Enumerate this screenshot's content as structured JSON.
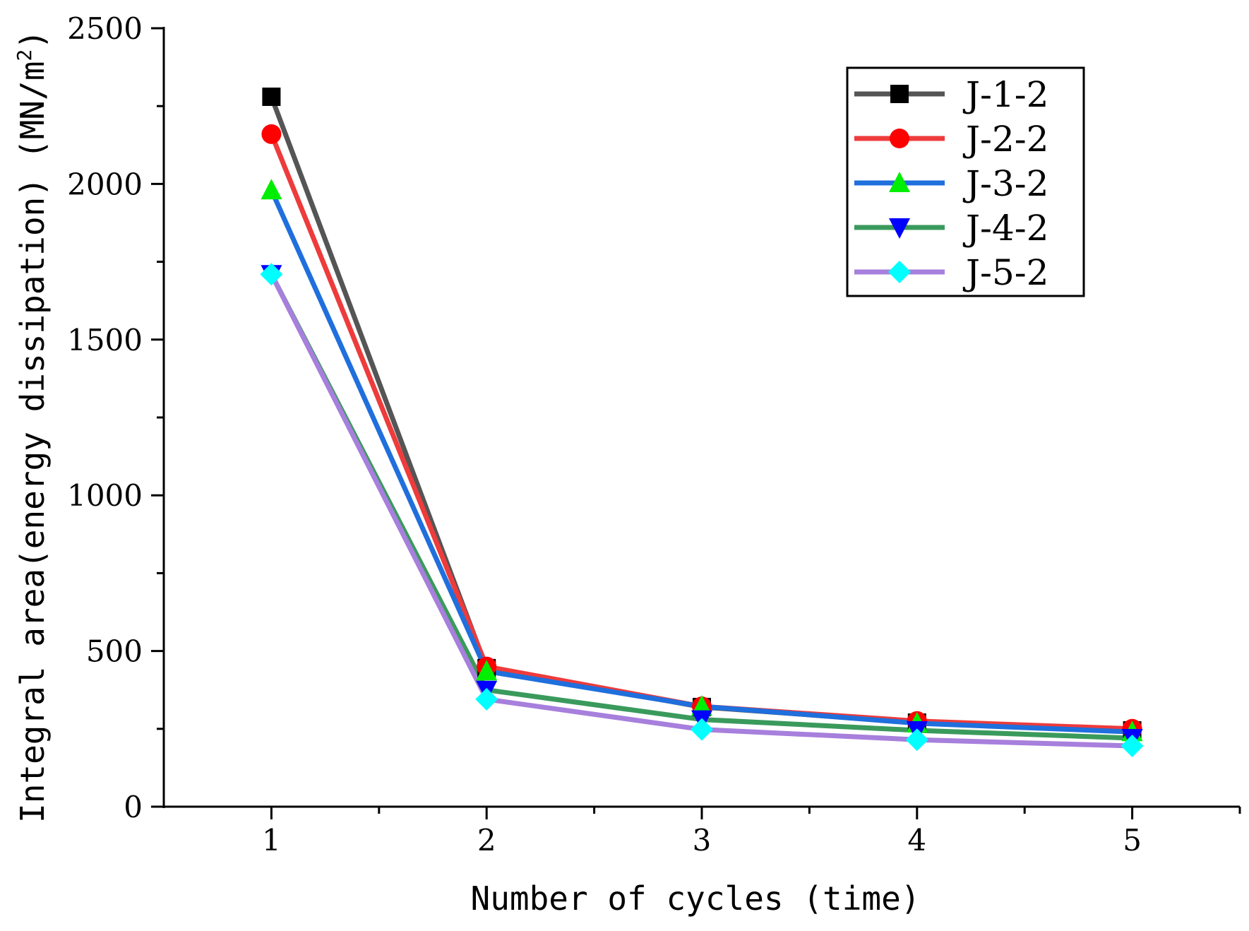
{
  "chart_data": {
    "type": "line",
    "title": "",
    "xlabel": "Number of cycles (time)",
    "ylabel": "Integral area(energy dissipation)",
    "ylabel_unit": "(MN/m",
    "ylabel_unit_sup": "2",
    "ylabel_unit_close": ")",
    "x": [
      1,
      2,
      3,
      4,
      5
    ],
    "xlim": [
      0.5,
      5.5
    ],
    "ylim": [
      0,
      2500
    ],
    "x_ticks": [
      1,
      2,
      3,
      4,
      5
    ],
    "x_tick_labels": [
      "1",
      "2",
      "3",
      "4",
      "5"
    ],
    "y_ticks": [
      0,
      500,
      1000,
      1500,
      2000,
      2500
    ],
    "y_tick_labels": [
      "0",
      "500",
      "1000",
      "1500",
      "2000",
      "2500"
    ],
    "grid": false,
    "legend_position": "top-right",
    "series": [
      {
        "name": "J-1-2",
        "values": [
          2280,
          445,
          320,
          270,
          245
        ],
        "color": "#555555",
        "marker": "square",
        "marker_color": "#000000"
      },
      {
        "name": "J-2-2",
        "values": [
          2160,
          450,
          322,
          275,
          250
        ],
        "color": "#ee3b3b",
        "marker": "circle",
        "marker_color": "#ff0000"
      },
      {
        "name": "J-3-2",
        "values": [
          1980,
          435,
          322,
          268,
          240
        ],
        "color": "#1f6fdd",
        "marker": "triangle-up",
        "marker_color": "#00ee00"
      },
      {
        "name": "J-4-2",
        "values": [
          1710,
          375,
          280,
          245,
          220
        ],
        "color": "#3a9a5c",
        "marker": "triangle-down",
        "marker_color": "#0000ff"
      },
      {
        "name": "J-5-2",
        "values": [
          1710,
          345,
          248,
          215,
          195
        ],
        "color": "#a77fdc",
        "marker": "diamond",
        "marker_color": "#00ffff"
      }
    ]
  }
}
